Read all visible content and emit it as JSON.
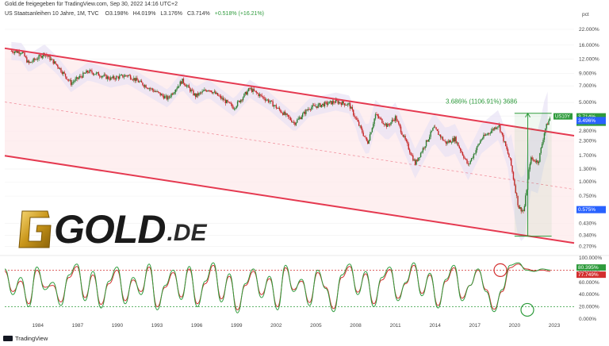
{
  "header": {
    "published_by": "Gold.de freigegeben für TradingView.com, Sep 30, 2022 14:16 UTC+2",
    "symbol_line": "US Staatsanleihen 10 Jahre, 1M, TVC",
    "ohlc": {
      "o": "O3.198%",
      "h": "H4.019%",
      "l": "L3.176%",
      "c": "C3.714%",
      "change": "+0.518% (+16.21%)"
    }
  },
  "footer": {
    "brand": "TradingView"
  },
  "logo": {
    "text": "GOLD",
    "suffix": ".DE"
  },
  "colors": {
    "channel": "#e53950",
    "channel_fill": "#fde8ea",
    "candle_up": "#2e7d32",
    "candle_down": "#c62828",
    "bb_fill": "#e6e0f5",
    "stoch_k": "#2e9b3c",
    "stoch_d": "#d32f2f",
    "measure": "#2e9b3c",
    "axis_text": "#444444",
    "grid": "#f0f0f0"
  },
  "chart_data": [
    {
      "type": "candlestick",
      "title": "US Staatsanleihen 10 Jahre",
      "interval": "1M",
      "scale": "log",
      "ylabel": "pct",
      "y_ticks": [
        "22.000%",
        "16.000%",
        "12.000%",
        "9.000%",
        "7.000%",
        "5.000%",
        "3.800%",
        "2.800%",
        "2.300%",
        "1.700%",
        "1.300%",
        "1.000%",
        "0.750%",
        "0.430%",
        "0.340%",
        "0.270%"
      ],
      "x_ticks": [
        "1984",
        "1987",
        "1990",
        "1993",
        "1996",
        "1999",
        "2002",
        "2005",
        "2008",
        "2011",
        "2014",
        "2017",
        "2020",
        "2023"
      ],
      "xlim": [
        1981.5,
        2024.5
      ],
      "ylim": [
        0.24,
        28
      ],
      "yield_path": [
        [
          1982.0,
          14.2
        ],
        [
          1982.8,
          13.9
        ],
        [
          1983.3,
          11.0
        ],
        [
          1984.5,
          13.5
        ],
        [
          1985.5,
          10.5
        ],
        [
          1986.5,
          7.4
        ],
        [
          1987.8,
          9.4
        ],
        [
          1988.5,
          8.9
        ],
        [
          1989.5,
          8.1
        ],
        [
          1990.8,
          8.7
        ],
        [
          1991.8,
          7.4
        ],
        [
          1993.8,
          5.4
        ],
        [
          1994.9,
          7.8
        ],
        [
          1995.9,
          5.7
        ],
        [
          1996.9,
          6.6
        ],
        [
          1998.8,
          4.5
        ],
        [
          2000.0,
          6.6
        ],
        [
          2001.5,
          5.1
        ],
        [
          2003.4,
          3.3
        ],
        [
          2004.5,
          4.5
        ],
        [
          2006.5,
          5.1
        ],
        [
          2007.5,
          4.8
        ],
        [
          2008.9,
          2.2
        ],
        [
          2009.5,
          3.9
        ],
        [
          2010.4,
          3.1
        ],
        [
          2011.0,
          3.7
        ],
        [
          2012.5,
          1.45
        ],
        [
          2013.9,
          3.0
        ],
        [
          2014.8,
          2.2
        ],
        [
          2015.5,
          2.4
        ],
        [
          2016.5,
          1.4
        ],
        [
          2017.5,
          2.4
        ],
        [
          2018.8,
          3.2
        ],
        [
          2019.7,
          1.5
        ],
        [
          2020.3,
          0.6
        ],
        [
          2020.7,
          0.55
        ],
        [
          2021.2,
          1.6
        ],
        [
          2021.8,
          1.5
        ],
        [
          2022.3,
          2.9
        ],
        [
          2022.7,
          3.71
        ]
      ],
      "last_price": "3.714%",
      "price_label": "US10Y",
      "countdown": "28:43:03",
      "levels": [
        {
          "label": "3.496%",
          "color": "#2962ff"
        },
        {
          "label": "0.575%",
          "color": "#2962ff"
        }
      ],
      "channel_upper": [
        [
          1981.5,
          15.0
        ],
        [
          2024.5,
          2.55
        ]
      ],
      "channel_lower": [
        [
          1981.5,
          1.7
        ],
        [
          2024.5,
          0.29
        ]
      ],
      "channel_mid": [
        [
          1981.5,
          5.05
        ],
        [
          2024.5,
          0.86
        ]
      ],
      "measurement": {
        "label": "3.686% (1106.91%) 3686",
        "from": [
          2021.0,
          0.333
        ],
        "to": [
          2021.0,
          4.019
        ]
      },
      "grid": false
    },
    {
      "type": "line",
      "title": "Stochastic",
      "y_ticks": [
        "100.000%",
        "80.000%",
        "60.000%",
        "40.000%",
        "20.000%",
        "0.000%"
      ],
      "ylim": [
        0,
        100
      ],
      "levels": [
        80,
        20
      ],
      "last_values": [
        {
          "label": "80.395%",
          "color": "#2e9b3c"
        },
        {
          "label": "77.749%",
          "color": "#d32f2f"
        }
      ],
      "series": [
        {
          "values_k": [
            82,
            40,
            68,
            20,
            85,
            48,
            60,
            22,
            72,
            90,
            30,
            78,
            18,
            62,
            85,
            25,
            68,
            40,
            90,
            15,
            55,
            80,
            32,
            86,
            20,
            62,
            92,
            28,
            74,
            10,
            58,
            82,
            35,
            70,
            15,
            88,
            45,
            65,
            22,
            80,
            50,
            12,
            72,
            90,
            40,
            78,
            20,
            68,
            85,
            30,
            60,
            92,
            38,
            75,
            18,
            65,
            88,
            30,
            55,
            82,
            45,
            12,
            48,
            88,
            92,
            80,
            78,
            82,
            80
          ]
        },
        {
          "values_d": [
            78,
            45,
            62,
            25,
            80,
            52,
            55,
            28,
            68,
            86,
            35,
            72,
            24,
            58,
            80,
            30,
            64,
            45,
            85,
            20,
            52,
            76,
            36,
            82,
            25,
            58,
            88,
            33,
            70,
            15,
            55,
            78,
            40,
            66,
            20,
            84,
            48,
            62,
            27,
            76,
            52,
            17,
            68,
            86,
            44,
            74,
            25,
            64,
            81,
            34,
            58,
            88,
            42,
            72,
            22,
            62,
            84,
            34,
            55,
            80,
            48,
            16,
            45,
            84,
            90,
            82,
            79,
            80,
            78
          ]
        }
      ]
    }
  ]
}
